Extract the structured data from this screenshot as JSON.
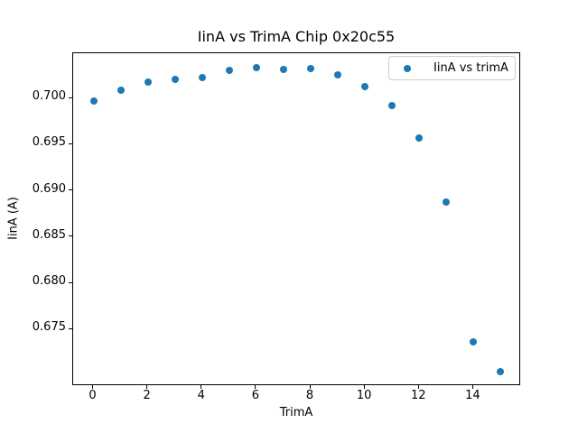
{
  "chart_data": {
    "type": "scatter",
    "title": "IinA vs TrimA Chip 0x20c55",
    "xlabel": "TrimA",
    "ylabel": "IinA (A)",
    "legend": [
      "IinA vs trimA"
    ],
    "legend_position": "upper right",
    "marker_color": "#1f77b4",
    "background_color": "#ffffff",
    "grid": false,
    "x": [
      0,
      1,
      2,
      3,
      4,
      5,
      6,
      7,
      8,
      9,
      10,
      11,
      12,
      13,
      14,
      15
    ],
    "y": [
      0.6997,
      0.7009,
      0.7018,
      0.7021,
      0.7023,
      0.703,
      0.7033,
      0.7031,
      0.7032,
      0.7026,
      0.7013,
      0.6992,
      0.6957,
      0.6888,
      0.6737,
      0.6705
    ],
    "xlim": [
      -0.75,
      15.75
    ],
    "ylim": [
      0.6689,
      0.7049
    ],
    "x_ticks": [
      0,
      2,
      4,
      6,
      8,
      10,
      12,
      14
    ],
    "x_tick_labels": [
      "0",
      "2",
      "4",
      "6",
      "8",
      "10",
      "12",
      "14"
    ],
    "y_ticks": [
      0.675,
      0.68,
      0.685,
      0.69,
      0.695,
      0.7
    ],
    "y_tick_labels": [
      "0.675",
      "0.680",
      "0.685",
      "0.690",
      "0.695",
      "0.700"
    ]
  }
}
